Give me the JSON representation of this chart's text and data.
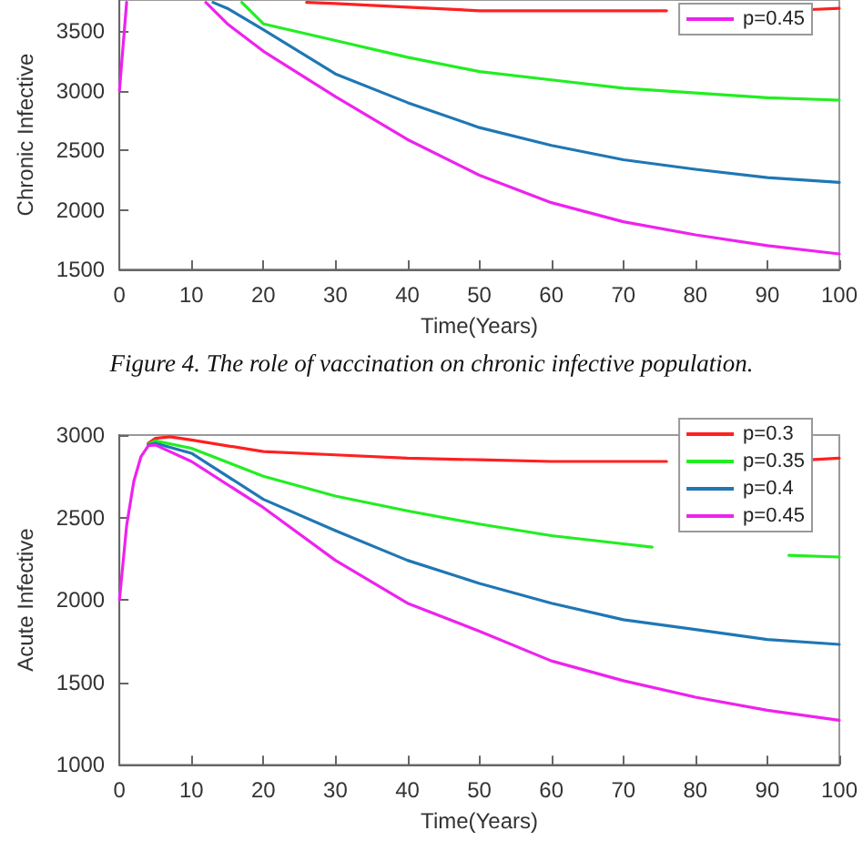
{
  "chart_data": [
    {
      "type": "line",
      "xlabel": "Time(Years)",
      "ylabel": "Chronic Infective",
      "xlim": [
        0,
        100
      ],
      "ylim": [
        1500,
        3760
      ],
      "xticks": [
        0,
        10,
        20,
        30,
        40,
        50,
        60,
        70,
        80,
        90,
        100
      ],
      "yticks": [
        1500,
        2000,
        2500,
        3000,
        3500
      ],
      "grid": false,
      "legend": "top right",
      "marker": "none",
      "line_style": "solid",
      "annotations": [
        "Figure 4. The role of vaccination on chronic infective population."
      ],
      "series": [
        {
          "color": "#ff2020",
          "x": [
            26,
            30,
            40,
            50,
            60,
            70,
            76,
            80,
            90,
            96,
            100
          ],
          "values": [
            3740,
            3730,
            3700,
            3670,
            3670,
            3670,
            3670,
            null,
            null,
            3680,
            3690
          ]
        },
        {
          "color": "#22ee22",
          "x": [
            17,
            20,
            30,
            40,
            50,
            60,
            70,
            80,
            90,
            100
          ],
          "values": [
            3740,
            3560,
            3420,
            3280,
            3160,
            3090,
            3020,
            2980,
            2940,
            2920
          ]
        },
        {
          "color": "#1f77b4",
          "x": [
            13,
            15,
            20,
            30,
            40,
            50,
            60,
            70,
            80,
            90,
            100
          ],
          "values": [
            3740,
            3690,
            3510,
            3140,
            2900,
            2690,
            2540,
            2420,
            2340,
            2270,
            2230
          ]
        },
        {
          "name": "p=0.45",
          "color": "#ee22ee",
          "x": [
            0,
            1,
            5,
            12,
            15,
            20,
            30,
            40,
            50,
            60,
            70,
            80,
            90,
            100
          ],
          "values": [
            3000,
            3740,
            null,
            3740,
            3560,
            3330,
            2950,
            2590,
            2290,
            2060,
            1900,
            1790,
            1700,
            1630
          ]
        }
      ]
    },
    {
      "type": "line",
      "xlabel": "Time(Years)",
      "ylabel": "Acute Infective",
      "xlim": [
        0,
        100
      ],
      "ylim": [
        1000,
        3000
      ],
      "xticks": [
        0,
        10,
        20,
        30,
        40,
        50,
        60,
        70,
        80,
        90,
        100
      ],
      "yticks": [
        1000,
        1500,
        2000,
        2500,
        3000
      ],
      "grid": false,
      "legend": "top right",
      "marker": "none",
      "line_style": "solid",
      "series": [
        {
          "name": "p=0.3",
          "color": "#ff2020",
          "x": [
            4,
            5,
            7,
            10,
            20,
            30,
            40,
            50,
            60,
            70,
            76,
            80,
            90,
            96,
            100
          ],
          "values": [
            2950,
            2980,
            2990,
            2970,
            2900,
            2880,
            2860,
            2850,
            2840,
            2840,
            2840,
            null,
            null,
            2850,
            2860
          ]
        },
        {
          "name": "p=0.35",
          "color": "#22ee22",
          "x": [
            4,
            5,
            10,
            20,
            30,
            40,
            50,
            60,
            70,
            74,
            80,
            90,
            93,
            100
          ],
          "values": [
            2945,
            2965,
            2920,
            2750,
            2630,
            2540,
            2460,
            2390,
            2340,
            2320,
            null,
            null,
            2270,
            2260
          ]
        },
        {
          "name": "p=0.4",
          "color": "#1f77b4",
          "x": [
            4,
            5,
            10,
            20,
            30,
            40,
            50,
            60,
            70,
            80,
            90,
            100
          ],
          "values": [
            2940,
            2950,
            2890,
            2610,
            2420,
            2240,
            2100,
            1980,
            1880,
            1820,
            1760,
            1730
          ]
        },
        {
          "name": "p=0.45",
          "color": "#ee22ee",
          "x": [
            0,
            1,
            2,
            3,
            4,
            5,
            10,
            20,
            30,
            40,
            50,
            60,
            70,
            80,
            90,
            100
          ],
          "values": [
            2000,
            2450,
            2720,
            2870,
            2935,
            2940,
            2840,
            2560,
            2240,
            1980,
            1810,
            1630,
            1510,
            1410,
            1330,
            1270
          ]
        }
      ]
    }
  ]
}
